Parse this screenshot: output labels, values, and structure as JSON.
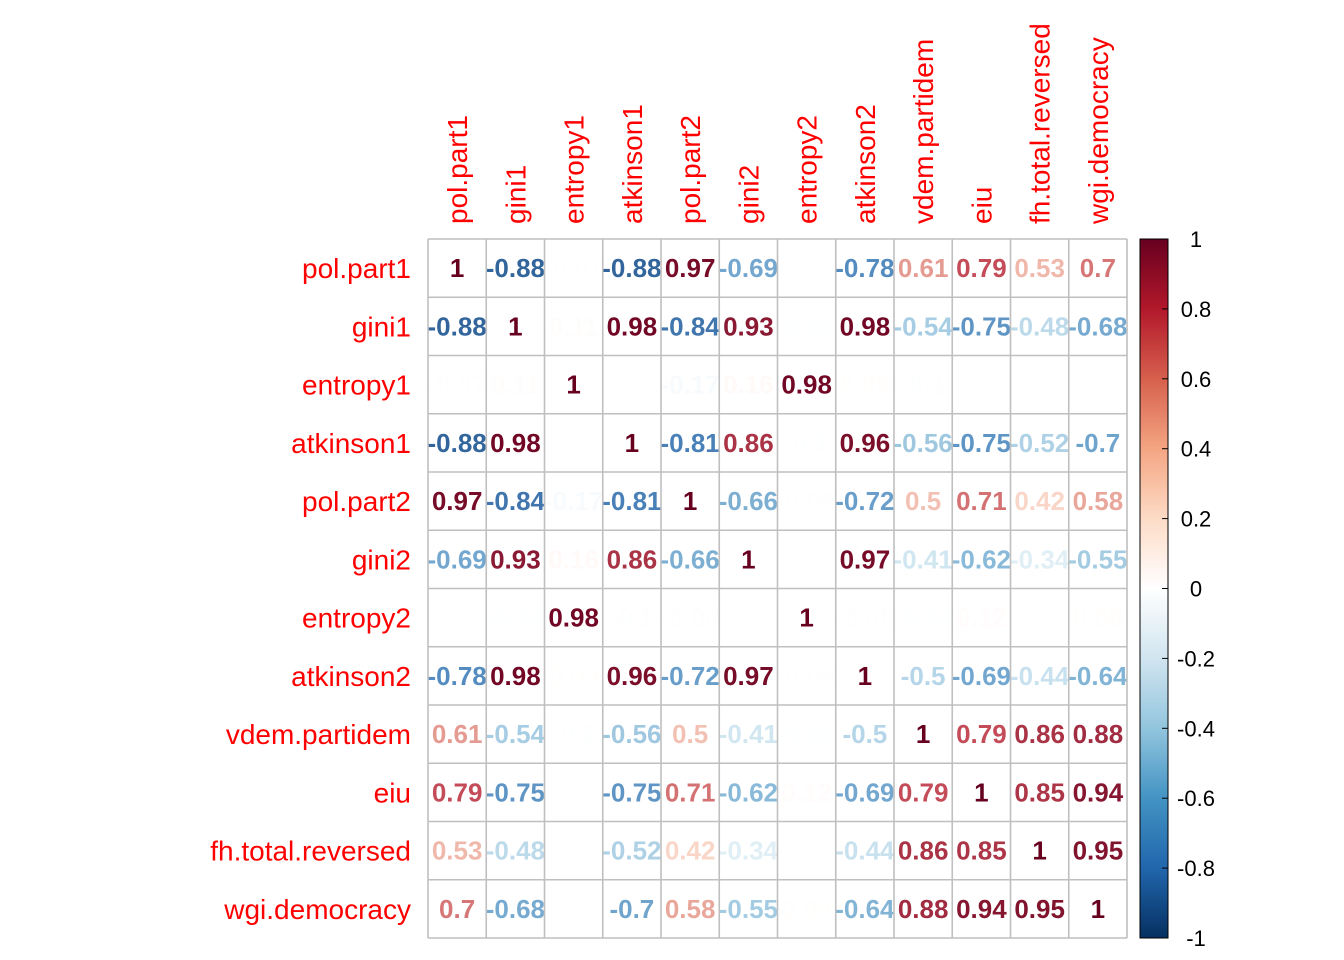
{
  "chart_data": {
    "type": "heatmap",
    "variables": [
      "pol.part1",
      "gini1",
      "entropy1",
      "atkinson1",
      "pol.part2",
      "gini2",
      "entropy2",
      "atkinson2",
      "vdem.partidem",
      "eiu",
      "fh.total.reversed",
      "wgi.democracy"
    ],
    "column_labels": [
      "pol.part1",
      "gini1",
      "entropy1",
      "atkinson1",
      "pol.part2",
      "gini2",
      "entropy2",
      "atkinson2",
      "vdem.partidem",
      "eiu",
      "fh.total.reversed",
      "wgi.democracy"
    ],
    "values": [
      [
        1,
        -0.88,
        -0.07,
        -0.88,
        0.97,
        -0.69,
        0.02,
        -0.78,
        0.61,
        0.79,
        0.53,
        0.7
      ],
      [
        -0.88,
        1,
        0.11,
        0.98,
        -0.84,
        0.93,
        -0.04,
        0.98,
        -0.54,
        -0.75,
        -0.48,
        -0.68
      ],
      [
        -0.07,
        0.11,
        1,
        0.03,
        -0.17,
        0.16,
        0.98,
        0.09,
        -0.1,
        0.03,
        0.01,
        0
      ],
      [
        -0.88,
        0.98,
        0.03,
        1,
        -0.81,
        0.86,
        -0.1,
        0.96,
        -0.56,
        -0.75,
        -0.52,
        -0.7
      ],
      [
        0.97,
        -0.84,
        -0.17,
        -0.81,
        1,
        -0.66,
        -0.08,
        -0.72,
        0.5,
        0.71,
        0.42,
        0.58
      ],
      [
        -0.69,
        0.93,
        0.16,
        0.86,
        -0.66,
        1,
        0.02,
        0.97,
        -0.41,
        -0.62,
        -0.34,
        -0.55
      ],
      [
        0.02,
        -0.04,
        0.98,
        -0.1,
        -0.08,
        0.02,
        1,
        -0.08,
        -0.04,
        0.12,
        0.03,
        0.08
      ],
      [
        -0.78,
        0.98,
        0.09,
        0.96,
        -0.72,
        0.97,
        -0.08,
        1,
        -0.5,
        -0.69,
        -0.44,
        -0.64
      ],
      [
        0.61,
        -0.54,
        -0.1,
        -0.56,
        0.5,
        -0.41,
        -0.04,
        -0.5,
        1,
        0.79,
        0.86,
        0.88
      ],
      [
        0.79,
        -0.75,
        0.03,
        -0.75,
        0.71,
        -0.62,
        0.12,
        -0.69,
        0.79,
        1,
        0.85,
        0.94
      ],
      [
        0.53,
        -0.48,
        0.01,
        -0.52,
        0.42,
        -0.34,
        0.03,
        -0.44,
        0.86,
        0.85,
        1,
        0.95
      ],
      [
        0.7,
        -0.68,
        0,
        -0.7,
        0.58,
        -0.55,
        0.08,
        -0.64,
        0.88,
        0.94,
        0.95,
        1
      ]
    ],
    "colorbar": {
      "range": [
        -1,
        1
      ],
      "ticks": [
        1,
        0.8,
        0.6,
        0.4,
        0.2,
        0,
        -0.2,
        -0.4,
        -0.6,
        -0.8,
        -1
      ],
      "tick_labels": [
        "1",
        "0.8",
        "0.6",
        "0.4",
        "0.2",
        "0",
        "-0.2",
        "-0.4",
        "-0.6",
        "-0.8",
        "-1"
      ],
      "colors": [
        "#67001F",
        "#B2182B",
        "#D6604D",
        "#F4A582",
        "#FDDBC7",
        "#FFFFFF",
        "#D1E5F0",
        "#92C5DE",
        "#4393C3",
        "#2166AC",
        "#053061"
      ]
    },
    "label_color": "#FF0000",
    "grid": true
  }
}
